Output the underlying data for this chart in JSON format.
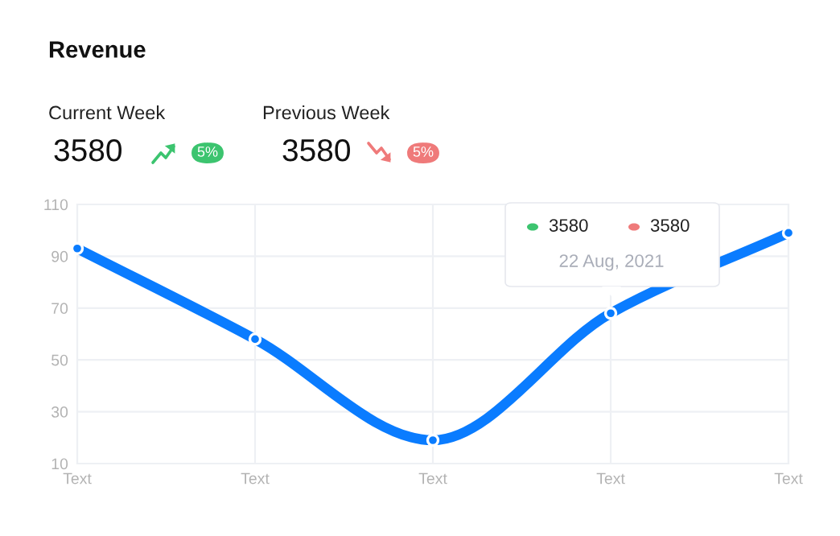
{
  "chart_data": {
    "type": "line",
    "title": "Revenue",
    "categories": [
      "Text",
      "Text",
      "Text",
      "Text",
      "Text"
    ],
    "series": [
      {
        "color": "#0a7cff",
        "values": [
          93,
          58,
          19,
          68,
          99
        ]
      }
    ],
    "ylim": [
      10,
      110
    ],
    "yticks": [
      10,
      30,
      50,
      70,
      90,
      110
    ],
    "grid": true,
    "marker": "circle",
    "line_style": "solid",
    "annotations": [
      "Current Week",
      "3580",
      "5%",
      "Previous Week",
      "3580",
      "5%",
      "3580",
      "3580",
      "22 Aug, 2021"
    ]
  }
}
